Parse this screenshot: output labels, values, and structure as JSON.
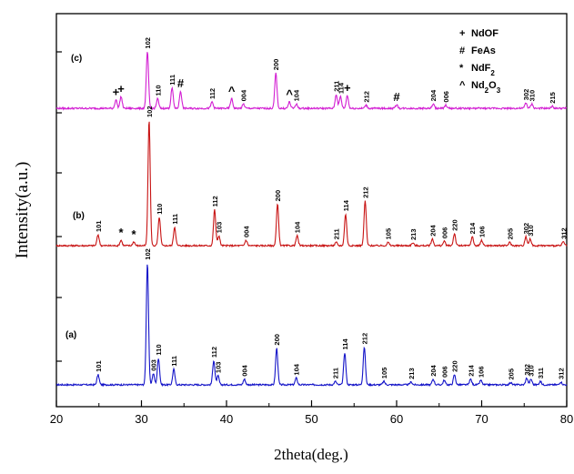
{
  "chart_data": {
    "type": "line",
    "title": "",
    "xlabel": "2theta(deg.)",
    "ylabel": "Intensity(a.u.)",
    "xlim": [
      20,
      80
    ],
    "xticks": [
      "20",
      "30",
      "40",
      "50",
      "60",
      "70",
      "80"
    ],
    "series": [
      {
        "panel": "(a)",
        "color": "#1414c8",
        "baseline": 0.5,
        "noise": 0.07,
        "peaks": [
          {
            "x": 24.9,
            "h": 0.9,
            "label": "101"
          },
          {
            "x": 30.7,
            "h": 11.0,
            "label": "102"
          },
          {
            "x": 31.4,
            "h": 1.0,
            "label": "003"
          },
          {
            "x": 32.0,
            "h": 2.4,
            "label": "110"
          },
          {
            "x": 33.8,
            "h": 1.4,
            "label": "111"
          },
          {
            "x": 38.5,
            "h": 2.2,
            "label": "112"
          },
          {
            "x": 39.0,
            "h": 0.8,
            "label": "103"
          },
          {
            "x": 42.1,
            "h": 0.5,
            "label": "004"
          },
          {
            "x": 45.9,
            "h": 3.3,
            "label": "200"
          },
          {
            "x": 48.2,
            "h": 0.6,
            "label": "104"
          },
          {
            "x": 52.8,
            "h": 0.3,
            "label": "211"
          },
          {
            "x": 53.9,
            "h": 2.9,
            "label": "114"
          },
          {
            "x": 56.2,
            "h": 3.4,
            "label": "212"
          },
          {
            "x": 58.5,
            "h": 0.3,
            "label": "105"
          },
          {
            "x": 61.7,
            "h": 0.25,
            "label": "213"
          },
          {
            "x": 64.3,
            "h": 0.5,
            "label": "204"
          },
          {
            "x": 65.6,
            "h": 0.4,
            "label": "006"
          },
          {
            "x": 66.8,
            "h": 0.9,
            "label": "220"
          },
          {
            "x": 68.7,
            "h": 0.5,
            "label": "214"
          },
          {
            "x": 69.9,
            "h": 0.4,
            "label": "106"
          },
          {
            "x": 73.4,
            "h": 0.2,
            "label": "205"
          },
          {
            "x": 75.3,
            "h": 0.6,
            "label": "302"
          },
          {
            "x": 75.8,
            "h": 0.5,
            "label": "310"
          },
          {
            "x": 76.9,
            "h": 0.3,
            "label": "311"
          },
          {
            "x": 79.3,
            "h": 0.25,
            "label": "312"
          }
        ]
      },
      {
        "panel": "(b)",
        "color": "#c81414",
        "baseline": 0.5,
        "noise": 0.07,
        "peaks": [
          {
            "x": 24.9,
            "h": 1.0,
            "label": "101"
          },
          {
            "x": 27.6,
            "h": 0.5,
            "label": "*"
          },
          {
            "x": 29.1,
            "h": 0.35,
            "label": "*"
          },
          {
            "x": 30.9,
            "h": 11.5,
            "label": "102"
          },
          {
            "x": 32.1,
            "h": 2.6,
            "label": "110"
          },
          {
            "x": 33.9,
            "h": 1.7,
            "label": "111"
          },
          {
            "x": 38.6,
            "h": 3.3,
            "label": "112"
          },
          {
            "x": 39.1,
            "h": 0.9,
            "label": "103"
          },
          {
            "x": 42.3,
            "h": 0.5,
            "label": "004"
          },
          {
            "x": 46.0,
            "h": 3.8,
            "label": "200"
          },
          {
            "x": 48.3,
            "h": 0.9,
            "label": "104"
          },
          {
            "x": 52.9,
            "h": 0.3,
            "label": "211"
          },
          {
            "x": 54.0,
            "h": 2.9,
            "label": "114"
          },
          {
            "x": 56.3,
            "h": 4.1,
            "label": "212"
          },
          {
            "x": 59.0,
            "h": 0.3,
            "label": "105"
          },
          {
            "x": 61.9,
            "h": 0.25,
            "label": "213"
          },
          {
            "x": 64.2,
            "h": 0.6,
            "label": "204"
          },
          {
            "x": 65.6,
            "h": 0.4,
            "label": "006"
          },
          {
            "x": 66.8,
            "h": 1.1,
            "label": "220"
          },
          {
            "x": 68.9,
            "h": 0.8,
            "label": "214"
          },
          {
            "x": 70.0,
            "h": 0.5,
            "label": "106"
          },
          {
            "x": 73.3,
            "h": 0.3,
            "label": "205"
          },
          {
            "x": 75.2,
            "h": 0.8,
            "label": "302"
          },
          {
            "x": 75.7,
            "h": 0.6,
            "label": "310"
          },
          {
            "x": 79.6,
            "h": 0.35,
            "label": "312"
          }
        ]
      },
      {
        "panel": "(c)",
        "color": "#d21ed2",
        "baseline": 0.5,
        "noise": 0.08,
        "peaks": [
          {
            "x": 27.0,
            "h": 0.8,
            "label": "+"
          },
          {
            "x": 27.6,
            "h": 1.1,
            "label": "+"
          },
          {
            "x": 30.7,
            "h": 5.3,
            "label": "102"
          },
          {
            "x": 31.9,
            "h": 0.9,
            "label": "110"
          },
          {
            "x": 33.6,
            "h": 1.9,
            "label": "111"
          },
          {
            "x": 34.6,
            "h": 1.6,
            "label": "#"
          },
          {
            "x": 38.3,
            "h": 0.6,
            "label": "112"
          },
          {
            "x": 40.6,
            "h": 0.9,
            "label": "^"
          },
          {
            "x": 42.0,
            "h": 0.4,
            "label": "004"
          },
          {
            "x": 45.8,
            "h": 3.3,
            "label": "200"
          },
          {
            "x": 47.4,
            "h": 0.6,
            "label": "^"
          },
          {
            "x": 48.2,
            "h": 0.4,
            "label": "104"
          },
          {
            "x": 52.9,
            "h": 1.3,
            "label": "211"
          },
          {
            "x": 53.4,
            "h": 1.1,
            "label": "114"
          },
          {
            "x": 54.2,
            "h": 1.2,
            "label": "+"
          },
          {
            "x": 56.4,
            "h": 0.3,
            "label": "212"
          },
          {
            "x": 60.0,
            "h": 0.35,
            "label": "#"
          },
          {
            "x": 64.3,
            "h": 0.4,
            "label": "204"
          },
          {
            "x": 65.8,
            "h": 0.3,
            "label": "006"
          },
          {
            "x": 75.2,
            "h": 0.5,
            "label": "302"
          },
          {
            "x": 75.9,
            "h": 0.4,
            "label": "310"
          },
          {
            "x": 78.3,
            "h": 0.2,
            "label": "215"
          }
        ]
      }
    ],
    "legend": {
      "placement": "top-right",
      "entries": [
        {
          "symbol": "+",
          "name": "NdOF"
        },
        {
          "symbol": "#",
          "name": "FeAs"
        },
        {
          "symbol": "*",
          "name": "NdF2"
        },
        {
          "symbol": "^",
          "name": "Nd2O3"
        }
      ]
    },
    "grid": false
  }
}
